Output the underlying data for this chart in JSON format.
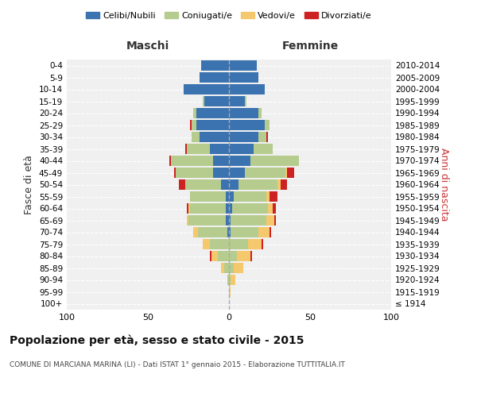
{
  "age_groups": [
    "100+",
    "95-99",
    "90-94",
    "85-89",
    "80-84",
    "75-79",
    "70-74",
    "65-69",
    "60-64",
    "55-59",
    "50-54",
    "45-49",
    "40-44",
    "35-39",
    "30-34",
    "25-29",
    "20-24",
    "15-19",
    "10-14",
    "5-9",
    "0-4"
  ],
  "birth_years": [
    "≤ 1914",
    "1915-1919",
    "1920-1924",
    "1925-1929",
    "1930-1934",
    "1935-1939",
    "1940-1944",
    "1945-1949",
    "1950-1954",
    "1955-1959",
    "1960-1964",
    "1965-1969",
    "1970-1974",
    "1975-1979",
    "1980-1984",
    "1985-1989",
    "1990-1994",
    "1995-1999",
    "2000-2004",
    "2005-2009",
    "2010-2014"
  ],
  "male": {
    "celibi": [
      0,
      0,
      0,
      0,
      0,
      0,
      1,
      2,
      2,
      2,
      5,
      10,
      10,
      12,
      18,
      20,
      20,
      15,
      28,
      18,
      17
    ],
    "coniugati": [
      0,
      0,
      1,
      3,
      7,
      12,
      18,
      23,
      22,
      22,
      22,
      23,
      26,
      14,
      5,
      3,
      2,
      1,
      0,
      0,
      0
    ],
    "vedovi": [
      0,
      0,
      0,
      2,
      4,
      4,
      3,
      1,
      1,
      0,
      0,
      0,
      0,
      0,
      0,
      0,
      0,
      0,
      0,
      0,
      0
    ],
    "divorziati": [
      0,
      0,
      0,
      0,
      1,
      0,
      0,
      0,
      1,
      0,
      4,
      1,
      1,
      1,
      0,
      1,
      0,
      0,
      0,
      0,
      0
    ]
  },
  "female": {
    "nubili": [
      0,
      0,
      0,
      0,
      0,
      0,
      1,
      1,
      2,
      3,
      6,
      10,
      13,
      15,
      18,
      22,
      18,
      10,
      22,
      18,
      17
    ],
    "coniugate": [
      0,
      0,
      1,
      3,
      5,
      12,
      17,
      22,
      22,
      20,
      24,
      25,
      30,
      12,
      5,
      3,
      2,
      1,
      0,
      0,
      0
    ],
    "vedove": [
      0,
      1,
      3,
      6,
      8,
      8,
      7,
      5,
      3,
      2,
      2,
      1,
      0,
      0,
      0,
      0,
      0,
      0,
      0,
      0,
      0
    ],
    "divorziate": [
      0,
      0,
      0,
      0,
      1,
      1,
      1,
      1,
      2,
      5,
      4,
      4,
      0,
      0,
      1,
      0,
      0,
      0,
      0,
      0,
      0
    ]
  },
  "colors": {
    "celibi": "#3b72b0",
    "coniugati": "#b5cc8e",
    "vedovi": "#f5c86e",
    "divorziati": "#cc2222"
  },
  "title": "Popolazione per età, sesso e stato civile - 2015",
  "subtitle": "COMUNE DI MARCIANA MARINA (LI) - Dati ISTAT 1° gennaio 2015 - Elaborazione TUTTITALIA.IT",
  "xlabel_left": "Maschi",
  "xlabel_right": "Femmine",
  "ylabel_left": "Fasce di età",
  "ylabel_right": "Anni di nascita",
  "xlim": 100,
  "legend_labels": [
    "Celibi/Nubili",
    "Coniugati/e",
    "Vedovi/e",
    "Divorziati/e"
  ]
}
